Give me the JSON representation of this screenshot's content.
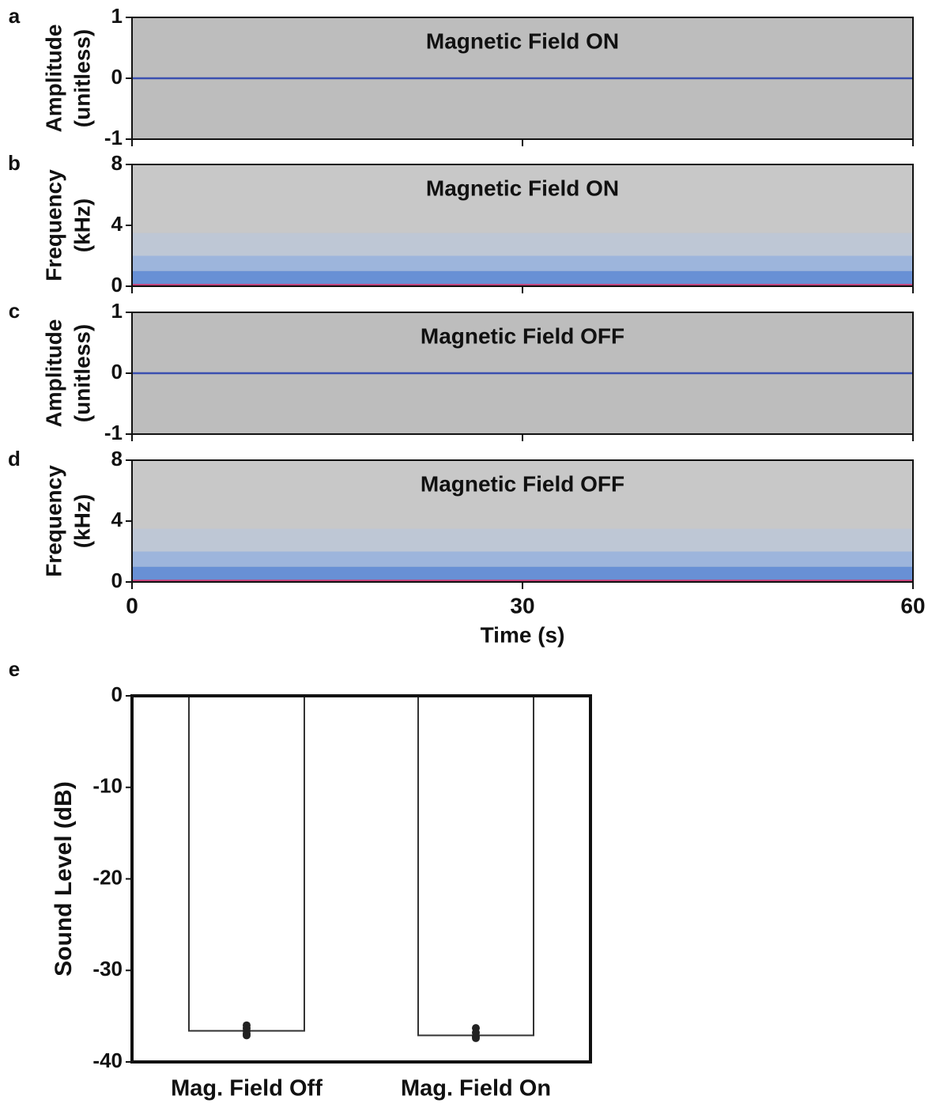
{
  "chart_data": [
    {
      "type": "waveform",
      "label": "a",
      "title": "Magnetic Field ON",
      "ylabel": [
        "Amplitude",
        "(unitless)"
      ],
      "x": [
        0,
        60
      ],
      "values": [
        0,
        0
      ],
      "color": "#3a4fb0",
      "background": "#bdbdbd",
      "xlim": [
        0,
        60
      ],
      "xticks": [
        0,
        30,
        60
      ],
      "show_xtick_labels": false,
      "ylim": [
        -1,
        1
      ],
      "yticks": [
        -1,
        0,
        1
      ]
    },
    {
      "type": "spectrogram",
      "label": "b",
      "title": "Magnetic Field ON",
      "ylabel": [
        "Frequency",
        "(kHz)"
      ],
      "background": "#c8c8c8",
      "bands": [
        {
          "from": 2,
          "to": 3.5,
          "color": "#bcc6d6"
        },
        {
          "from": 1,
          "to": 2,
          "color": "#98b2de"
        },
        {
          "from": 0.15,
          "to": 1,
          "color": "#5d8ad6"
        },
        {
          "from": 0,
          "to": 0.15,
          "color": "#c23070"
        }
      ],
      "xlim": [
        0,
        60
      ],
      "xticks": [
        0,
        30,
        60
      ],
      "show_xtick_labels": false,
      "ylim": [
        0,
        8
      ],
      "yticks": [
        0,
        4,
        8
      ]
    },
    {
      "type": "waveform",
      "label": "c",
      "title": "Magnetic Field OFF",
      "ylabel": [
        "Amplitude",
        "(unitless)"
      ],
      "x": [
        0,
        60
      ],
      "values": [
        0,
        0
      ],
      "color": "#3a4fb0",
      "background": "#bdbdbd",
      "xlim": [
        0,
        60
      ],
      "xticks": [
        0,
        30,
        60
      ],
      "show_xtick_labels": false,
      "ylim": [
        -1,
        1
      ],
      "yticks": [
        -1,
        0,
        1
      ]
    },
    {
      "type": "spectrogram",
      "label": "d",
      "title": "Magnetic Field OFF",
      "ylabel": [
        "Frequency",
        "(kHz)"
      ],
      "xlabel": "Time (s)",
      "background": "#c8c8c8",
      "bands": [
        {
          "from": 2,
          "to": 3.5,
          "color": "#bcc6d6"
        },
        {
          "from": 1,
          "to": 2,
          "color": "#98b2de"
        },
        {
          "from": 0.15,
          "to": 1,
          "color": "#5d8ad6"
        },
        {
          "from": 0,
          "to": 0.15,
          "color": "#c23070"
        }
      ],
      "xlim": [
        0,
        60
      ],
      "xticks": [
        0,
        30,
        60
      ],
      "show_xtick_labels": true,
      "ylim": [
        0,
        8
      ],
      "yticks": [
        0,
        4,
        8
      ]
    },
    {
      "type": "bar",
      "label": "e",
      "ylabel": "Sound Level (dB)",
      "categories": [
        "Mag. Field Off",
        "Mag. Field On"
      ],
      "values": [
        -36.6,
        -37.1
      ],
      "points": [
        [
          -36.0,
          -36.3,
          -36.6,
          -36.9,
          -37.1
        ],
        [
          -36.3,
          -36.8,
          -37.2,
          -37.4
        ]
      ],
      "color": "#ffffff",
      "point_color": "#222222",
      "ylim": [
        -40,
        0
      ],
      "yticks": [
        0,
        -10,
        -20,
        -30,
        -40
      ]
    }
  ]
}
